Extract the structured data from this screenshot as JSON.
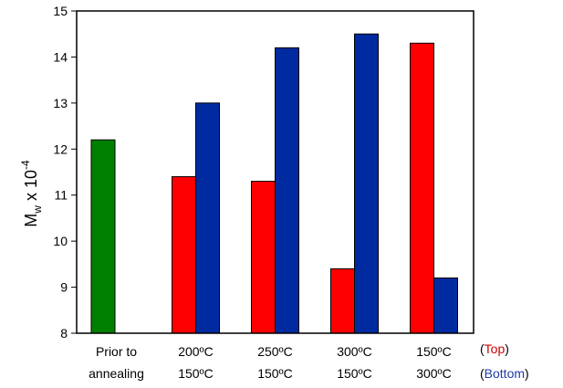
{
  "chart_data": {
    "type": "bar",
    "ylabel": {
      "base": "M",
      "subscript": "w",
      "mid": " x 10",
      "superscript": "-4"
    },
    "ylim": [
      8,
      15
    ],
    "yticks": [
      "8",
      "9",
      "10",
      "11",
      "12",
      "13",
      "14",
      "15"
    ],
    "grid": false,
    "categories": [
      {
        "line1": "Prior to",
        "line2": "annealing"
      },
      {
        "line1": "200ºC",
        "line2": "150ºC"
      },
      {
        "line1": "250ºC",
        "line2": "150ºC"
      },
      {
        "line1": "300ºC",
        "line2": "150ºC"
      },
      {
        "line1": "150ºC",
        "line2": "300ºC"
      }
    ],
    "series": [
      {
        "name": "Prior",
        "color": "#008000",
        "values": [
          12.2,
          null,
          null,
          null,
          null
        ]
      },
      {
        "name": "Top",
        "color": "#ff0000",
        "values": [
          null,
          11.4,
          11.3,
          9.4,
          14.3
        ]
      },
      {
        "name": "Bottom",
        "color": "#002aa0",
        "values": [
          null,
          13.0,
          14.2,
          14.5,
          9.2
        ]
      }
    ],
    "legend": {
      "placement": "right-of-categories",
      "entries": [
        {
          "open": "(",
          "label": "Top",
          "close": ")",
          "color": "#cc0000"
        },
        {
          "open": "(",
          "label": "Bottom",
          "close": ")",
          "color": "#1f3aa8"
        }
      ]
    }
  }
}
